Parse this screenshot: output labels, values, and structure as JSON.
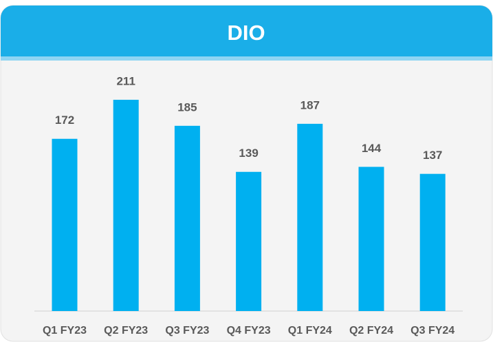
{
  "chart_data": {
    "type": "bar",
    "title": "DIO",
    "categories": [
      "Q1 FY23",
      "Q2 FY23",
      "Q3 FY23",
      "Q4 FY23",
      "Q1 FY24",
      "Q2 FY24",
      "Q3 FY24"
    ],
    "values": [
      172,
      211,
      185,
      139,
      187,
      144,
      137
    ],
    "color": "#00b0f0"
  }
}
